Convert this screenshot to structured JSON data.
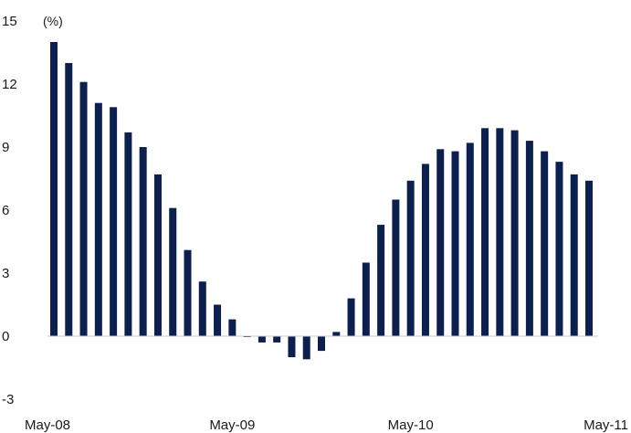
{
  "chart_data": {
    "type": "bar",
    "unit_label": "(%)",
    "title": "",
    "xlabel": "",
    "ylabel": "",
    "ylim": [
      -3,
      15
    ],
    "y_ticks": [
      15,
      12,
      9,
      6,
      3,
      0,
      -3
    ],
    "x_tick_labels": [
      {
        "label": "May-08",
        "index": 0
      },
      {
        "label": "May-09",
        "index": 12
      },
      {
        "label": "May-10",
        "index": 24
      },
      {
        "label": "May-11",
        "index": 36
      }
    ],
    "grid": false,
    "legend": "none",
    "bar_color": "#0d1f4e",
    "categories": [
      "May-08",
      "Jun-08",
      "Jul-08",
      "Aug-08",
      "Sep-08",
      "Oct-08",
      "Nov-08",
      "Dec-08",
      "Jan-09",
      "Feb-09",
      "Mar-09",
      "Apr-09",
      "May-09",
      "Jun-09",
      "Jul-09",
      "Aug-09",
      "Sep-09",
      "Oct-09",
      "Nov-09",
      "Dec-09",
      "Jan-10",
      "Feb-10",
      "Mar-10",
      "Apr-10",
      "May-10",
      "Jun-10",
      "Jul-10",
      "Aug-10",
      "Sep-10",
      "Oct-10",
      "Nov-10",
      "Dec-10",
      "Jan-11",
      "Feb-11",
      "Mar-11",
      "Apr-11",
      "May-11"
    ],
    "values": [
      14.0,
      13.0,
      12.1,
      11.1,
      10.9,
      9.7,
      9.0,
      7.7,
      6.1,
      4.1,
      2.6,
      1.5,
      0.8,
      0.0,
      -0.3,
      -0.3,
      -1.0,
      -1.1,
      -0.7,
      0.2,
      1.8,
      3.5,
      5.3,
      6.5,
      7.4,
      8.2,
      8.9,
      8.8,
      9.2,
      9.9,
      9.9,
      9.8,
      9.3,
      8.8,
      8.3,
      7.7,
      7.4
    ]
  }
}
